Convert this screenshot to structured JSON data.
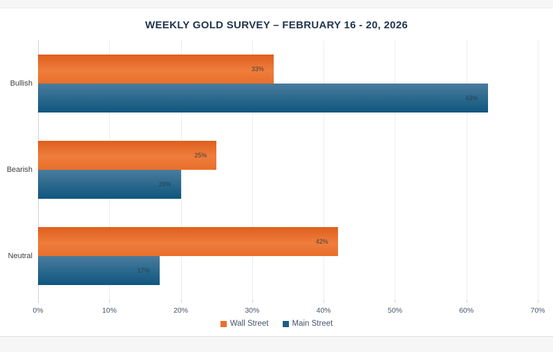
{
  "chart_data": {
    "type": "bar",
    "orientation": "horizontal",
    "title": "WEEKLY GOLD SURVEY – FEBRUARY 16 - 20, 2026",
    "categories": [
      "Bullish",
      "Bearish",
      "Neutral"
    ],
    "series": [
      {
        "name": "Wall Street",
        "color": "#E8702D",
        "values": [
          33,
          25,
          42
        ]
      },
      {
        "name": "Main Street",
        "color": "#1F5C85",
        "values": [
          63,
          20,
          17
        ]
      }
    ],
    "value_label_suffix": "%",
    "x_ticks": [
      "0%",
      "10%",
      "20%",
      "30%",
      "40%",
      "50%",
      "60%",
      "70%"
    ],
    "xlim": [
      0,
      70
    ],
    "grid": true,
    "legend_position": "bottom",
    "colors": {
      "title": "#20364f",
      "gridline": "#eaeef1",
      "axis_line": "#ccd5db",
      "tick_text": "#44546a",
      "category_text": "#3d3d3d"
    }
  }
}
